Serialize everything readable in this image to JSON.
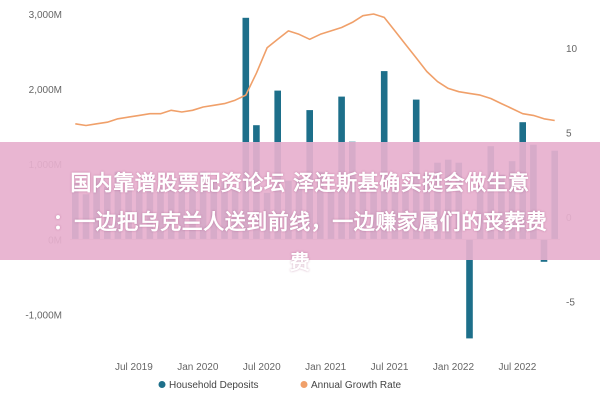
{
  "chart_data": {
    "type": "bar",
    "title": "",
    "xlabel": "",
    "ylabel": "",
    "ylim": [
      -1500,
      3000
    ],
    "y2lim": [
      -8,
      12
    ],
    "y_ticks": [
      -1000,
      0,
      1000,
      2000,
      3000
    ],
    "y_tick_labels": [
      "-1,000M",
      "0M",
      "1,000M",
      "2,000M",
      "3,000M"
    ],
    "y2_ticks": [
      -5,
      0,
      5,
      10
    ],
    "y2_tick_labels": [
      "-5",
      "0",
      "5",
      "10"
    ],
    "x_ticks": [
      "Jul 2019",
      "Jan 2020",
      "Jul 2020",
      "Jan 2021",
      "Jul 2021",
      "Jan 2022",
      "Jul 2022"
    ],
    "x_tick_positions": [
      6,
      12,
      18,
      24,
      30,
      36,
      42
    ],
    "grid": false,
    "legend_position": "bottom",
    "series": [
      {
        "name": "Household Deposits",
        "kind": "bar",
        "axis": "left",
        "color": "#1d6f8a",
        "values": [
          750,
          600,
          800,
          700,
          900,
          750,
          650,
          850,
          700,
          780,
          820,
          700,
          900,
          800,
          760,
          700,
          2950,
          1520,
          620,
          1980,
          780,
          820,
          1720,
          900,
          640,
          1900,
          1300,
          760,
          700,
          2240,
          740,
          740,
          1860,
          880,
          1020,
          1060,
          1020,
          -1320,
          720,
          1240,
          860,
          1040,
          1560,
          1260,
          -300,
          1180
        ]
      },
      {
        "name": "Annual Growth Rate",
        "kind": "line",
        "axis": "right",
        "color": "#f0a06a",
        "values": [
          5.5,
          5.4,
          5.5,
          5.6,
          5.8,
          5.9,
          6.0,
          6.1,
          6.1,
          6.3,
          6.2,
          6.3,
          6.5,
          6.6,
          6.7,
          6.9,
          7.2,
          8.5,
          10.0,
          10.5,
          11.0,
          10.8,
          10.5,
          10.8,
          11.0,
          11.2,
          11.5,
          11.9,
          12.0,
          11.8,
          11.0,
          10.2,
          9.4,
          8.6,
          8.0,
          7.6,
          7.4,
          7.3,
          7.2,
          7.0,
          6.7,
          6.4,
          6.1,
          6.0,
          5.8,
          5.7
        ]
      }
    ]
  },
  "legend": {
    "items": [
      {
        "label": "Household Deposits",
        "color": "#1d6f8a"
      },
      {
        "label": "Annual Growth Rate",
        "color": "#f0a06a"
      }
    ]
  },
  "banner": {
    "line1": "国内靠谱股票配资论坛 泽连斯基确实挺会做生意",
    "line2": "：一边把乌克兰人送到前线，一边赚家属们的丧葬费",
    "line3": "费"
  }
}
